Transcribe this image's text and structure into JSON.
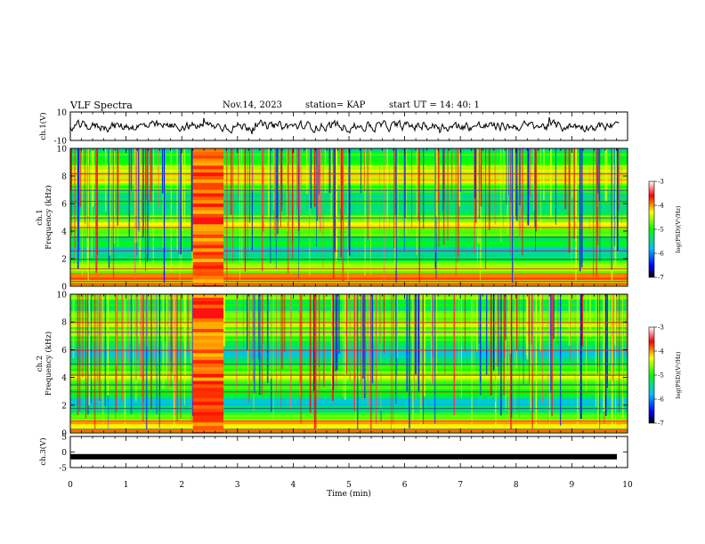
{
  "header": {
    "title": "VLF Spectra",
    "date": "Nov.14, 2023",
    "station": "station= KAP",
    "start_ut": "start UT =  14: 40: 1"
  },
  "chart_data": [
    {
      "type": "line",
      "panel": "ch1-waveform",
      "ylabel": "ch.1(V)",
      "yticks": [
        "10",
        "-10"
      ],
      "ylim": [
        -10,
        10
      ],
      "xlim": [
        0,
        10
      ],
      "description_note": "noisy voltage trace roughly between -4 and +4 V",
      "series": [
        {
          "values": [
            1,
            -2,
            3,
            0,
            -1,
            2,
            -3,
            1,
            0,
            2
          ]
        }
      ]
    },
    {
      "type": "heatmap",
      "panel": "ch1-spectrogram",
      "ylabel": "ch.1\nFrequency (kHz)",
      "yticks": [
        "0",
        "2",
        "4",
        "6",
        "8",
        "10"
      ],
      "ylim": [
        0,
        10
      ],
      "xlim": [
        0,
        10
      ],
      "colorbar": {
        "label": "log(PSD)(V²/Hz)",
        "ticks": [
          "-3",
          "-4",
          "-5",
          "-6",
          "-7"
        ],
        "range": [
          -7,
          -3
        ]
      },
      "burst_intervals_min": [
        [
          2.2,
          2.75
        ]
      ]
    },
    {
      "type": "heatmap",
      "panel": "ch2-spectrogram",
      "ylabel": "ch.2\nFrequency (kHz)",
      "yticks": [
        "0",
        "2",
        "4",
        "6",
        "8",
        "10"
      ],
      "ylim": [
        0,
        10
      ],
      "xlim": [
        0,
        10
      ],
      "colorbar": {
        "label": "log(PSD)(V²/Hz)",
        "ticks": [
          "-3",
          "-4",
          "-5",
          "-6",
          "-7"
        ],
        "range": [
          -7,
          -3
        ]
      },
      "burst_intervals_min": [
        [
          2.2,
          2.75
        ]
      ]
    },
    {
      "type": "line",
      "panel": "ch3-waveform",
      "ylabel": "ch.3(V)",
      "yticks": [
        "5",
        "0",
        "-5"
      ],
      "ylim": [
        -5,
        5
      ],
      "xlim": [
        0,
        10
      ],
      "xlabel": "Time (min)",
      "xticks": [
        "0",
        "1",
        "2",
        "3",
        "4",
        "5",
        "6",
        "7",
        "8",
        "9",
        "10"
      ],
      "series": [
        {
          "values": [
            -1.5,
            -1.5,
            -1.5,
            -1.5,
            -1.5,
            -1.5,
            -1.5,
            -1.5,
            -1.5,
            -1.5
          ]
        }
      ]
    }
  ]
}
